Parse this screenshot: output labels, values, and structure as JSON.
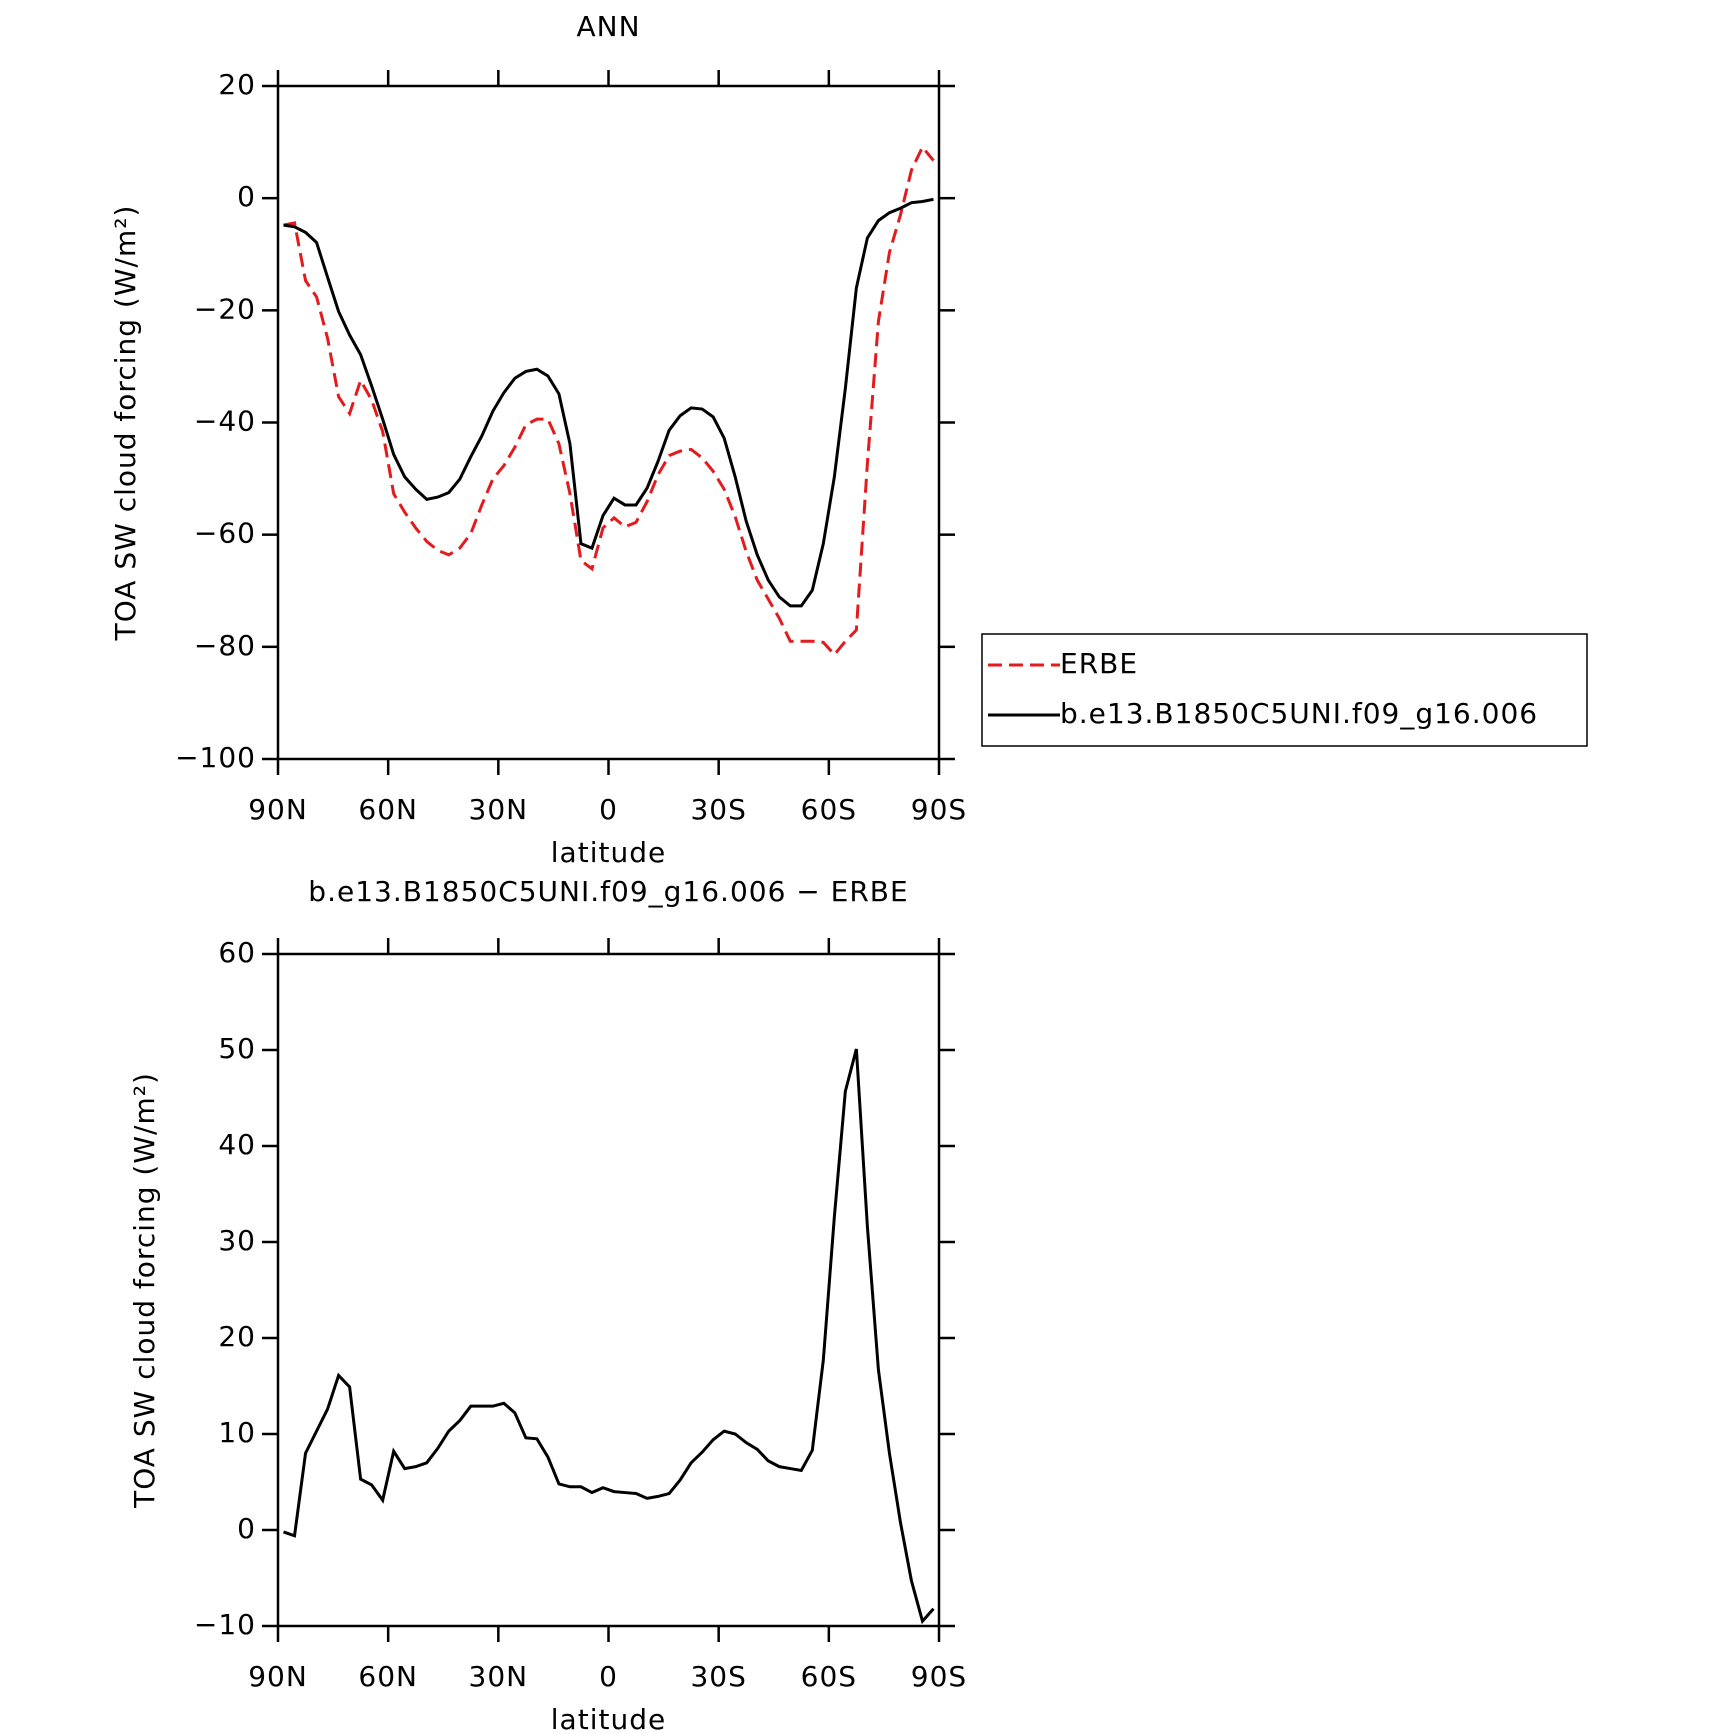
{
  "chart_data": [
    {
      "type": "line",
      "title": "ANN",
      "x_label": "latitude",
      "y_label": "TOA SW cloud forcing (W/m²)",
      "x": [
        88.5,
        85.5,
        82.5,
        79.5,
        76.5,
        73.5,
        70.5,
        67.5,
        64.5,
        61.5,
        58.5,
        55.5,
        52.5,
        49.5,
        46.5,
        43.5,
        40.5,
        37.5,
        34.5,
        31.5,
        28.5,
        25.5,
        22.5,
        19.5,
        16.5,
        13.5,
        10.5,
        7.5,
        4.5,
        1.5,
        -1.5,
        -4.5,
        -7.5,
        -10.5,
        -13.5,
        -16.5,
        -19.5,
        -22.5,
        -25.5,
        -28.5,
        -31.5,
        -34.5,
        -37.5,
        -40.5,
        -43.5,
        -46.5,
        -49.5,
        -52.5,
        -55.5,
        -58.5,
        -61.5,
        -64.5,
        -67.5,
        -70.5,
        -73.5,
        -76.5,
        -79.5,
        -82.5,
        -85.5,
        -88.5
      ],
      "series": [
        {
          "name": "ERBE",
          "color": "#e41a1c",
          "line_style": "dashed",
          "values": [
            -4.8,
            -4.4,
            -14.7,
            -17.6,
            -25.0,
            -35.4,
            -38.4,
            -32.5,
            -36.0,
            -41.6,
            -52.7,
            -56.0,
            -58.8,
            -61.2,
            -62.8,
            -63.6,
            -62.4,
            -59.8,
            -54.7,
            -50.1,
            -47.7,
            -44.4,
            -40.4,
            -39.4,
            -39.4,
            -43.8,
            -52.7,
            -64.6,
            -66.1,
            -58.8,
            -57.0,
            -58.6,
            -57.8,
            -54.1,
            -49.3,
            -45.9,
            -45.1,
            -44.8,
            -46.3,
            -48.7,
            -51.9,
            -56.8,
            -63.0,
            -68.1,
            -71.5,
            -74.9,
            -79.0,
            -79.0,
            -79.0,
            -79.2,
            -81.4,
            -79.0,
            -77.0,
            -47.3,
            -22.0,
            -9.7,
            -3.0,
            5.0,
            9.1,
            6.7
          ]
        },
        {
          "name": "b.e13.B1850C5UNI.f09_g16.006",
          "color": "#000000",
          "line_style": "solid",
          "values": [
            -4.8,
            -5.1,
            -6.1,
            -7.9,
            -14.1,
            -20.2,
            -24.4,
            -27.9,
            -33.5,
            -39.4,
            -45.7,
            -49.7,
            -51.9,
            -53.7,
            -53.3,
            -52.5,
            -50.1,
            -46.1,
            -42.4,
            -38.0,
            -34.7,
            -32.1,
            -30.9,
            -30.5,
            -31.7,
            -34.9,
            -43.8,
            -61.6,
            -62.4,
            -56.6,
            -53.5,
            -54.7,
            -54.7,
            -51.7,
            -46.9,
            -41.4,
            -38.8,
            -37.4,
            -37.6,
            -39.0,
            -42.8,
            -49.7,
            -57.6,
            -63.6,
            -68.1,
            -71.1,
            -72.7,
            -72.7,
            -69.9,
            -61.6,
            -49.7,
            -33.9,
            -16.0,
            -7.1,
            -4.0,
            -2.6,
            -1.8,
            -0.8,
            -0.6,
            -0.2
          ]
        }
      ],
      "xlim": [
        90,
        -90
      ],
      "xticks": [
        {
          "value": 90,
          "label": "90N"
        },
        {
          "value": 60,
          "label": "60N"
        },
        {
          "value": 30,
          "label": "30N"
        },
        0,
        {
          "value": -30,
          "label": "30S"
        },
        {
          "value": -60,
          "label": "60S"
        },
        {
          "value": -90,
          "label": "90S"
        }
      ],
      "ylim": [
        -100,
        20
      ],
      "yticks": [
        {
          "value": -100,
          "label": "−100"
        },
        {
          "value": -80,
          "label": "−80"
        },
        {
          "value": -60,
          "label": "−60"
        },
        {
          "value": -40,
          "label": "−40"
        },
        {
          "value": -20,
          "label": "−20"
        },
        0,
        20
      ],
      "legend": "right"
    },
    {
      "type": "line",
      "title": "b.e13.B1850C5UNI.f09_g16.006 − ERBE",
      "x_label": "latitude",
      "y_label": "TOA SW cloud forcing (W/m²)",
      "x": [
        88.5,
        85.5,
        82.5,
        79.5,
        76.5,
        73.5,
        70.5,
        67.5,
        64.5,
        61.5,
        58.5,
        55.5,
        52.5,
        49.5,
        46.5,
        43.5,
        40.5,
        37.5,
        34.5,
        31.5,
        28.5,
        25.5,
        22.5,
        19.5,
        16.5,
        13.5,
        10.5,
        7.5,
        4.5,
        1.5,
        -1.5,
        -4.5,
        -7.5,
        -10.5,
        -13.5,
        -16.5,
        -19.5,
        -22.5,
        -25.5,
        -28.5,
        -31.5,
        -34.5,
        -37.5,
        -40.5,
        -43.5,
        -46.5,
        -49.5,
        -52.5,
        -55.5,
        -58.5,
        -61.5,
        -64.5,
        -67.5,
        -70.5,
        -73.5,
        -76.5,
        -79.5,
        -82.5,
        -85.5,
        -88.5
      ],
      "series": [
        {
          "color": "#000000",
          "line_style": "solid",
          "values": [
            -0.2,
            -0.6,
            8.0,
            10.3,
            12.6,
            16.1,
            14.9,
            5.3,
            4.7,
            3.1,
            8.2,
            6.4,
            6.6,
            7.0,
            8.5,
            10.3,
            11.4,
            12.9,
            12.9,
            12.9,
            13.2,
            12.2,
            9.6,
            9.5,
            7.6,
            4.8,
            4.5,
            4.5,
            3.9,
            4.4,
            4.0,
            3.9,
            3.8,
            3.3,
            3.5,
            3.8,
            5.2,
            7.0,
            8.1,
            9.4,
            10.3,
            10.0,
            9.1,
            8.4,
            7.2,
            6.6,
            6.4,
            6.2,
            8.3,
            17.7,
            32.6,
            45.7,
            50.1,
            31.6,
            16.7,
            8.0,
            0.8,
            -5.3,
            -9.5,
            -8.2
          ]
        }
      ],
      "xlim": [
        90,
        -90
      ],
      "xticks": [
        {
          "value": 90,
          "label": "90N"
        },
        {
          "value": 60,
          "label": "60N"
        },
        {
          "value": 30,
          "label": "30N"
        },
        0,
        {
          "value": -30,
          "label": "30S"
        },
        {
          "value": -60,
          "label": "60S"
        },
        {
          "value": -90,
          "label": "90S"
        }
      ],
      "ylim": [
        -10,
        60
      ],
      "yticks": [
        {
          "value": -10,
          "label": "−10"
        },
        0,
        10,
        20,
        30,
        40,
        50,
        60
      ]
    }
  ]
}
